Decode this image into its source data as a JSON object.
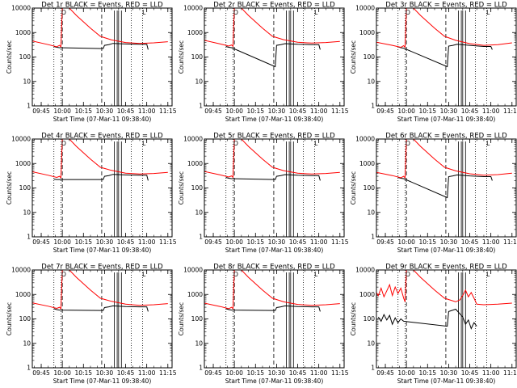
{
  "chart_data": {
    "type": "line",
    "yscale": "log",
    "ylim": [
      1,
      10000
    ],
    "y_ticks": [
      "1",
      "10",
      "100",
      "1000",
      "10000"
    ],
    "ylabel": "Counts/sec",
    "xlabel": "Start Time (07-Mar-11 09:38:40)",
    "xlim": [
      "09:38:40",
      "11:18:00"
    ],
    "x_ticks": [
      "09:45",
      "10:00",
      "10:15",
      "10:30",
      "10:45",
      "11:00",
      "11:15"
    ],
    "legend_colors": {
      "events": "#000000",
      "lld": "#ff0000"
    },
    "markers": {
      "top_left": "O",
      "top_right": "L"
    },
    "vertical_lines": {
      "dotted": [
        "09:54",
        "09:59",
        "10:49",
        "10:57"
      ],
      "dashed": [
        "10:00",
        "10:28"
      ],
      "solid": [
        "10:37",
        "10:39",
        "10:40",
        "10:42"
      ]
    },
    "panels": [
      {
        "title": "Det 1r BLACK = Events, RED = LLD",
        "red": [
          [
            "09:38:40",
            450
          ],
          [
            "09:50",
            320
          ],
          [
            "09:56",
            260
          ],
          [
            "09:58",
            300
          ],
          [
            "09:59",
            260
          ],
          [
            "10:00",
            12000
          ],
          [
            "10:04",
            12000
          ],
          [
            "10:10",
            5000
          ],
          [
            "10:20",
            1500
          ],
          [
            "10:27",
            700
          ],
          [
            "10:35",
            500
          ],
          [
            "10:45",
            390
          ],
          [
            "10:55",
            360
          ],
          [
            "11:05",
            380
          ],
          [
            "11:15",
            420
          ]
        ],
        "black": [
          [
            "09:54",
            270
          ],
          [
            "09:56",
            250
          ],
          [
            "09:58",
            240
          ],
          [
            "10:29",
            220
          ],
          [
            "10:30",
            300
          ],
          [
            "10:33",
            320
          ],
          [
            "10:36",
            360
          ],
          [
            "10:45",
            340
          ],
          [
            "10:55",
            330
          ],
          [
            "11:00",
            330
          ],
          [
            "11:01",
            200
          ]
        ]
      },
      {
        "title": "Det 2r BLACK = Events, RED = LLD",
        "red": [
          [
            "09:38:40",
            480
          ],
          [
            "09:50",
            340
          ],
          [
            "09:56",
            280
          ],
          [
            "09:58",
            310
          ],
          [
            "09:59",
            270
          ],
          [
            "10:00",
            12000
          ],
          [
            "10:04",
            12000
          ],
          [
            "10:10",
            5000
          ],
          [
            "10:20",
            1500
          ],
          [
            "10:27",
            700
          ],
          [
            "10:35",
            510
          ],
          [
            "10:45",
            400
          ],
          [
            "10:55",
            370
          ],
          [
            "11:05",
            390
          ],
          [
            "11:15",
            430
          ]
        ],
        "black": [
          [
            "09:54",
            270
          ],
          [
            "09:56",
            250
          ],
          [
            "09:58",
            240
          ],
          [
            "10:29",
            40
          ],
          [
            "10:30",
            300
          ],
          [
            "10:33",
            320
          ],
          [
            "10:36",
            350
          ],
          [
            "10:45",
            330
          ],
          [
            "10:55",
            320
          ],
          [
            "11:00",
            320
          ],
          [
            "11:01",
            200
          ]
        ]
      },
      {
        "title": "Det 3r BLACK = Events, RED = LLD",
        "red": [
          [
            "09:38:40",
            400
          ],
          [
            "09:50",
            300
          ],
          [
            "09:56",
            250
          ],
          [
            "09:58",
            290
          ],
          [
            "09:59",
            250
          ],
          [
            "10:00",
            12000
          ],
          [
            "10:04",
            12000
          ],
          [
            "10:10",
            5000
          ],
          [
            "10:20",
            1500
          ],
          [
            "10:27",
            700
          ],
          [
            "10:35",
            480
          ],
          [
            "10:45",
            350
          ],
          [
            "10:55",
            300
          ],
          [
            "11:05",
            320
          ],
          [
            "11:15",
            380
          ]
        ],
        "black": [
          [
            "09:54",
            260
          ],
          [
            "09:56",
            240
          ],
          [
            "09:58",
            230
          ],
          [
            "10:29",
            40
          ],
          [
            "10:30",
            280
          ],
          [
            "10:33",
            300
          ],
          [
            "10:36",
            330
          ],
          [
            "10:45",
            300
          ],
          [
            "10:55",
            270
          ],
          [
            "11:00",
            270
          ],
          [
            "11:01",
            200
          ]
        ]
      },
      {
        "title": "Det 4r BLACK = Events, RED = LLD",
        "red": [
          [
            "09:38:40",
            460
          ],
          [
            "09:50",
            330
          ],
          [
            "09:56",
            270
          ],
          [
            "09:58",
            300
          ],
          [
            "09:59",
            260
          ],
          [
            "10:00",
            12000
          ],
          [
            "10:04",
            12000
          ],
          [
            "10:10",
            5000
          ],
          [
            "10:20",
            1500
          ],
          [
            "10:27",
            700
          ],
          [
            "10:35",
            520
          ],
          [
            "10:45",
            400
          ],
          [
            "10:55",
            370
          ],
          [
            "11:05",
            390
          ],
          [
            "11:15",
            430
          ]
        ],
        "black": [
          [
            "09:54",
            230
          ],
          [
            "09:56",
            220
          ],
          [
            "09:58",
            220
          ],
          [
            "10:29",
            220
          ],
          [
            "10:30",
            300
          ],
          [
            "10:33",
            320
          ],
          [
            "10:36",
            360
          ],
          [
            "10:45",
            340
          ],
          [
            "10:55",
            330
          ],
          [
            "11:00",
            330
          ],
          [
            "11:01",
            200
          ]
        ]
      },
      {
        "title": "Det 5r BLACK = Events, RED = LLD",
        "red": [
          [
            "09:38:40",
            470
          ],
          [
            "09:50",
            340
          ],
          [
            "09:56",
            280
          ],
          [
            "09:58",
            310
          ],
          [
            "09:59",
            270
          ],
          [
            "10:00",
            12000
          ],
          [
            "10:04",
            12000
          ],
          [
            "10:10",
            5000
          ],
          [
            "10:20",
            1500
          ],
          [
            "10:27",
            700
          ],
          [
            "10:35",
            510
          ],
          [
            "10:45",
            400
          ],
          [
            "10:55",
            370
          ],
          [
            "11:05",
            390
          ],
          [
            "11:15",
            430
          ]
        ],
        "black": [
          [
            "09:54",
            270
          ],
          [
            "09:56",
            250
          ],
          [
            "09:58",
            240
          ],
          [
            "10:29",
            220
          ],
          [
            "10:30",
            300
          ],
          [
            "10:33",
            320
          ],
          [
            "10:36",
            350
          ],
          [
            "10:45",
            330
          ],
          [
            "10:55",
            320
          ],
          [
            "11:00",
            320
          ],
          [
            "11:01",
            200
          ]
        ]
      },
      {
        "title": "Det 6r BLACK = Events, RED = LLD",
        "red": [
          [
            "09:38:40",
            430
          ],
          [
            "09:50",
            320
          ],
          [
            "09:56",
            260
          ],
          [
            "09:58",
            300
          ],
          [
            "09:59",
            260
          ],
          [
            "10:00",
            12000
          ],
          [
            "10:04",
            12000
          ],
          [
            "10:10",
            5000
          ],
          [
            "10:20",
            1500
          ],
          [
            "10:27",
            700
          ],
          [
            "10:35",
            500
          ],
          [
            "10:45",
            380
          ],
          [
            "10:55",
            330
          ],
          [
            "11:05",
            350
          ],
          [
            "11:15",
            400
          ]
        ],
        "black": [
          [
            "09:54",
            270
          ],
          [
            "09:56",
            250
          ],
          [
            "09:58",
            240
          ],
          [
            "10:29",
            40
          ],
          [
            "10:30",
            290
          ],
          [
            "10:33",
            310
          ],
          [
            "10:36",
            340
          ],
          [
            "10:45",
            310
          ],
          [
            "10:55",
            290
          ],
          [
            "11:00",
            290
          ],
          [
            "11:01",
            200
          ]
        ]
      },
      {
        "title": "Det 7r BLACK = Events, RED = LLD",
        "red": [
          [
            "09:38:40",
            450
          ],
          [
            "09:50",
            330
          ],
          [
            "09:56",
            270
          ],
          [
            "09:58",
            300
          ],
          [
            "09:59",
            260
          ],
          [
            "10:00",
            12000
          ],
          [
            "10:04",
            12000
          ],
          [
            "10:10",
            5000
          ],
          [
            "10:20",
            1500
          ],
          [
            "10:27",
            700
          ],
          [
            "10:35",
            520
          ],
          [
            "10:45",
            400
          ],
          [
            "10:55",
            360
          ],
          [
            "11:05",
            380
          ],
          [
            "11:15",
            420
          ]
        ],
        "black": [
          [
            "09:54",
            260
          ],
          [
            "09:56",
            240
          ],
          [
            "09:58",
            230
          ],
          [
            "10:29",
            220
          ],
          [
            "10:30",
            290
          ],
          [
            "10:33",
            310
          ],
          [
            "10:36",
            340
          ],
          [
            "10:45",
            320
          ],
          [
            "10:55",
            310
          ],
          [
            "11:00",
            310
          ],
          [
            "11:01",
            200
          ]
        ]
      },
      {
        "title": "Det 8r BLACK = Events, RED = LLD",
        "red": [
          [
            "09:38:40",
            440
          ],
          [
            "09:50",
            320
          ],
          [
            "09:56",
            260
          ],
          [
            "09:58",
            300
          ],
          [
            "09:59",
            260
          ],
          [
            "10:00",
            12000
          ],
          [
            "10:04",
            12000
          ],
          [
            "10:10",
            5000
          ],
          [
            "10:20",
            1500
          ],
          [
            "10:27",
            700
          ],
          [
            "10:35",
            500
          ],
          [
            "10:45",
            390
          ],
          [
            "10:55",
            360
          ],
          [
            "11:05",
            380
          ],
          [
            "11:15",
            420
          ]
        ],
        "black": [
          [
            "09:54",
            260
          ],
          [
            "09:56",
            240
          ],
          [
            "09:58",
            230
          ],
          [
            "10:29",
            220
          ],
          [
            "10:30",
            290
          ],
          [
            "10:33",
            310
          ],
          [
            "10:36",
            340
          ],
          [
            "10:45",
            320
          ],
          [
            "10:55",
            310
          ],
          [
            "11:00",
            310
          ],
          [
            "11:01",
            200
          ]
        ]
      },
      {
        "title": "Det 9r BLACK = Events, RED = LLD",
        "red": [
          [
            "09:38:40",
            1200
          ],
          [
            "09:40",
            900
          ],
          [
            "09:42",
            1800
          ],
          [
            "09:44",
            800
          ],
          [
            "09:46",
            1400
          ],
          [
            "09:48",
            2500
          ],
          [
            "09:50",
            900
          ],
          [
            "09:52",
            2000
          ],
          [
            "09:54",
            1100
          ],
          [
            "09:56",
            1800
          ],
          [
            "09:58",
            700
          ],
          [
            "09:59",
            500
          ],
          [
            "10:00",
            12000
          ],
          [
            "10:04",
            12000
          ],
          [
            "10:10",
            5000
          ],
          [
            "10:20",
            1500
          ],
          [
            "10:27",
            700
          ],
          [
            "10:35",
            500
          ],
          [
            "10:38",
            600
          ],
          [
            "10:40",
            900
          ],
          [
            "10:42",
            1500
          ],
          [
            "10:44",
            800
          ],
          [
            "10:46",
            1200
          ],
          [
            "10:48",
            700
          ],
          [
            "10:50",
            400
          ],
          [
            "10:55",
            380
          ],
          [
            "11:05",
            400
          ],
          [
            "11:15",
            440
          ]
        ],
        "black": [
          [
            "09:40",
            120
          ],
          [
            "09:42",
            80
          ],
          [
            "09:44",
            150
          ],
          [
            "09:46",
            90
          ],
          [
            "09:48",
            140
          ],
          [
            "09:50",
            60
          ],
          [
            "09:52",
            110
          ],
          [
            "09:54",
            70
          ],
          [
            "09:56",
            100
          ],
          [
            "09:58",
            80
          ],
          [
            "10:29",
            50
          ],
          [
            "10:30",
            200
          ],
          [
            "10:35",
            250
          ],
          [
            "10:40",
            120
          ],
          [
            "10:42",
            60
          ],
          [
            "10:44",
            90
          ],
          [
            "10:46",
            40
          ],
          [
            "10:48",
            70
          ],
          [
            "10:50",
            50
          ]
        ]
      }
    ]
  }
}
